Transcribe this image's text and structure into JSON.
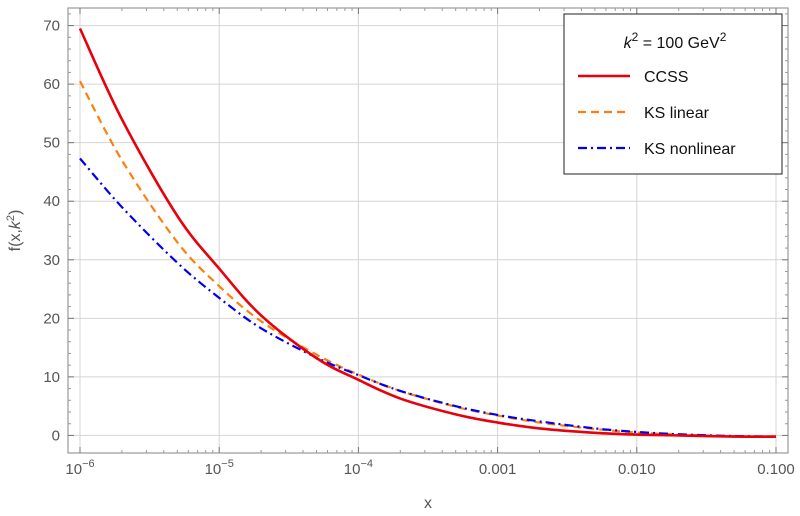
{
  "chart_data": {
    "type": "line",
    "xscale": "log",
    "xlim": [
      1e-06,
      0.1
    ],
    "ylim": [
      -3,
      73
    ],
    "grid": true,
    "xlabel": "x",
    "ylabel": "f(x,k²)",
    "xticks": [
      {
        "value": 1e-06,
        "base": "10",
        "exp": "−6",
        "text": ""
      },
      {
        "value": 1e-05,
        "base": "10",
        "exp": "−5",
        "text": ""
      },
      {
        "value": 0.0001,
        "base": "10",
        "exp": "−4",
        "text": ""
      },
      {
        "value": 0.001,
        "base": "",
        "exp": "",
        "text": "0.001"
      },
      {
        "value": 0.01,
        "base": "",
        "exp": "",
        "text": "0.010"
      },
      {
        "value": 0.1,
        "base": "",
        "exp": "",
        "text": "0.100"
      }
    ],
    "yticks": [
      0,
      10,
      20,
      30,
      40,
      50,
      60,
      70
    ],
    "legend": {
      "position": "top-right",
      "title": "k² = 100 GeV²"
    },
    "series": [
      {
        "name": "CCSS",
        "color": "#e8000b",
        "dash": "solid",
        "x": [
          1e-06,
          2e-06,
          5e-06,
          1e-05,
          2e-05,
          5e-05,
          0.0001,
          0.0002,
          0.0005,
          0.001,
          0.002,
          0.005,
          0.01,
          0.02,
          0.05,
          0.1
        ],
        "y": [
          69.5,
          54.0,
          37.5,
          28.5,
          20.5,
          13.2,
          9.5,
          6.3,
          3.6,
          2.2,
          1.2,
          0.45,
          0.15,
          0.0,
          -0.2,
          -0.2
        ]
      },
      {
        "name": "KS linear",
        "color": "#ff7f0e",
        "dash": "dashed",
        "x": [
          1e-06,
          2e-06,
          5e-06,
          1e-05,
          2e-05,
          5e-05,
          0.0001,
          0.0002,
          0.0005,
          0.001,
          0.002,
          0.005,
          0.01,
          0.02,
          0.05,
          0.1
        ],
        "y": [
          60.5,
          47.0,
          33.0,
          25.5,
          19.5,
          13.8,
          10.4,
          7.6,
          4.9,
          3.4,
          2.2,
          1.1,
          0.5,
          0.15,
          -0.15,
          -0.2
        ]
      },
      {
        "name": "KS nonlinear",
        "color": "#0000ee",
        "dash": "dashdot",
        "x": [
          1e-06,
          2e-06,
          5e-06,
          1e-05,
          2e-05,
          5e-05,
          0.0001,
          0.0002,
          0.0005,
          0.001,
          0.002,
          0.005,
          0.01,
          0.02,
          0.05,
          0.1
        ],
        "y": [
          47.3,
          39.0,
          29.5,
          23.5,
          18.3,
          13.3,
          10.3,
          7.6,
          5.0,
          3.5,
          2.4,
          1.2,
          0.6,
          0.2,
          -0.1,
          -0.2
        ]
      }
    ]
  }
}
